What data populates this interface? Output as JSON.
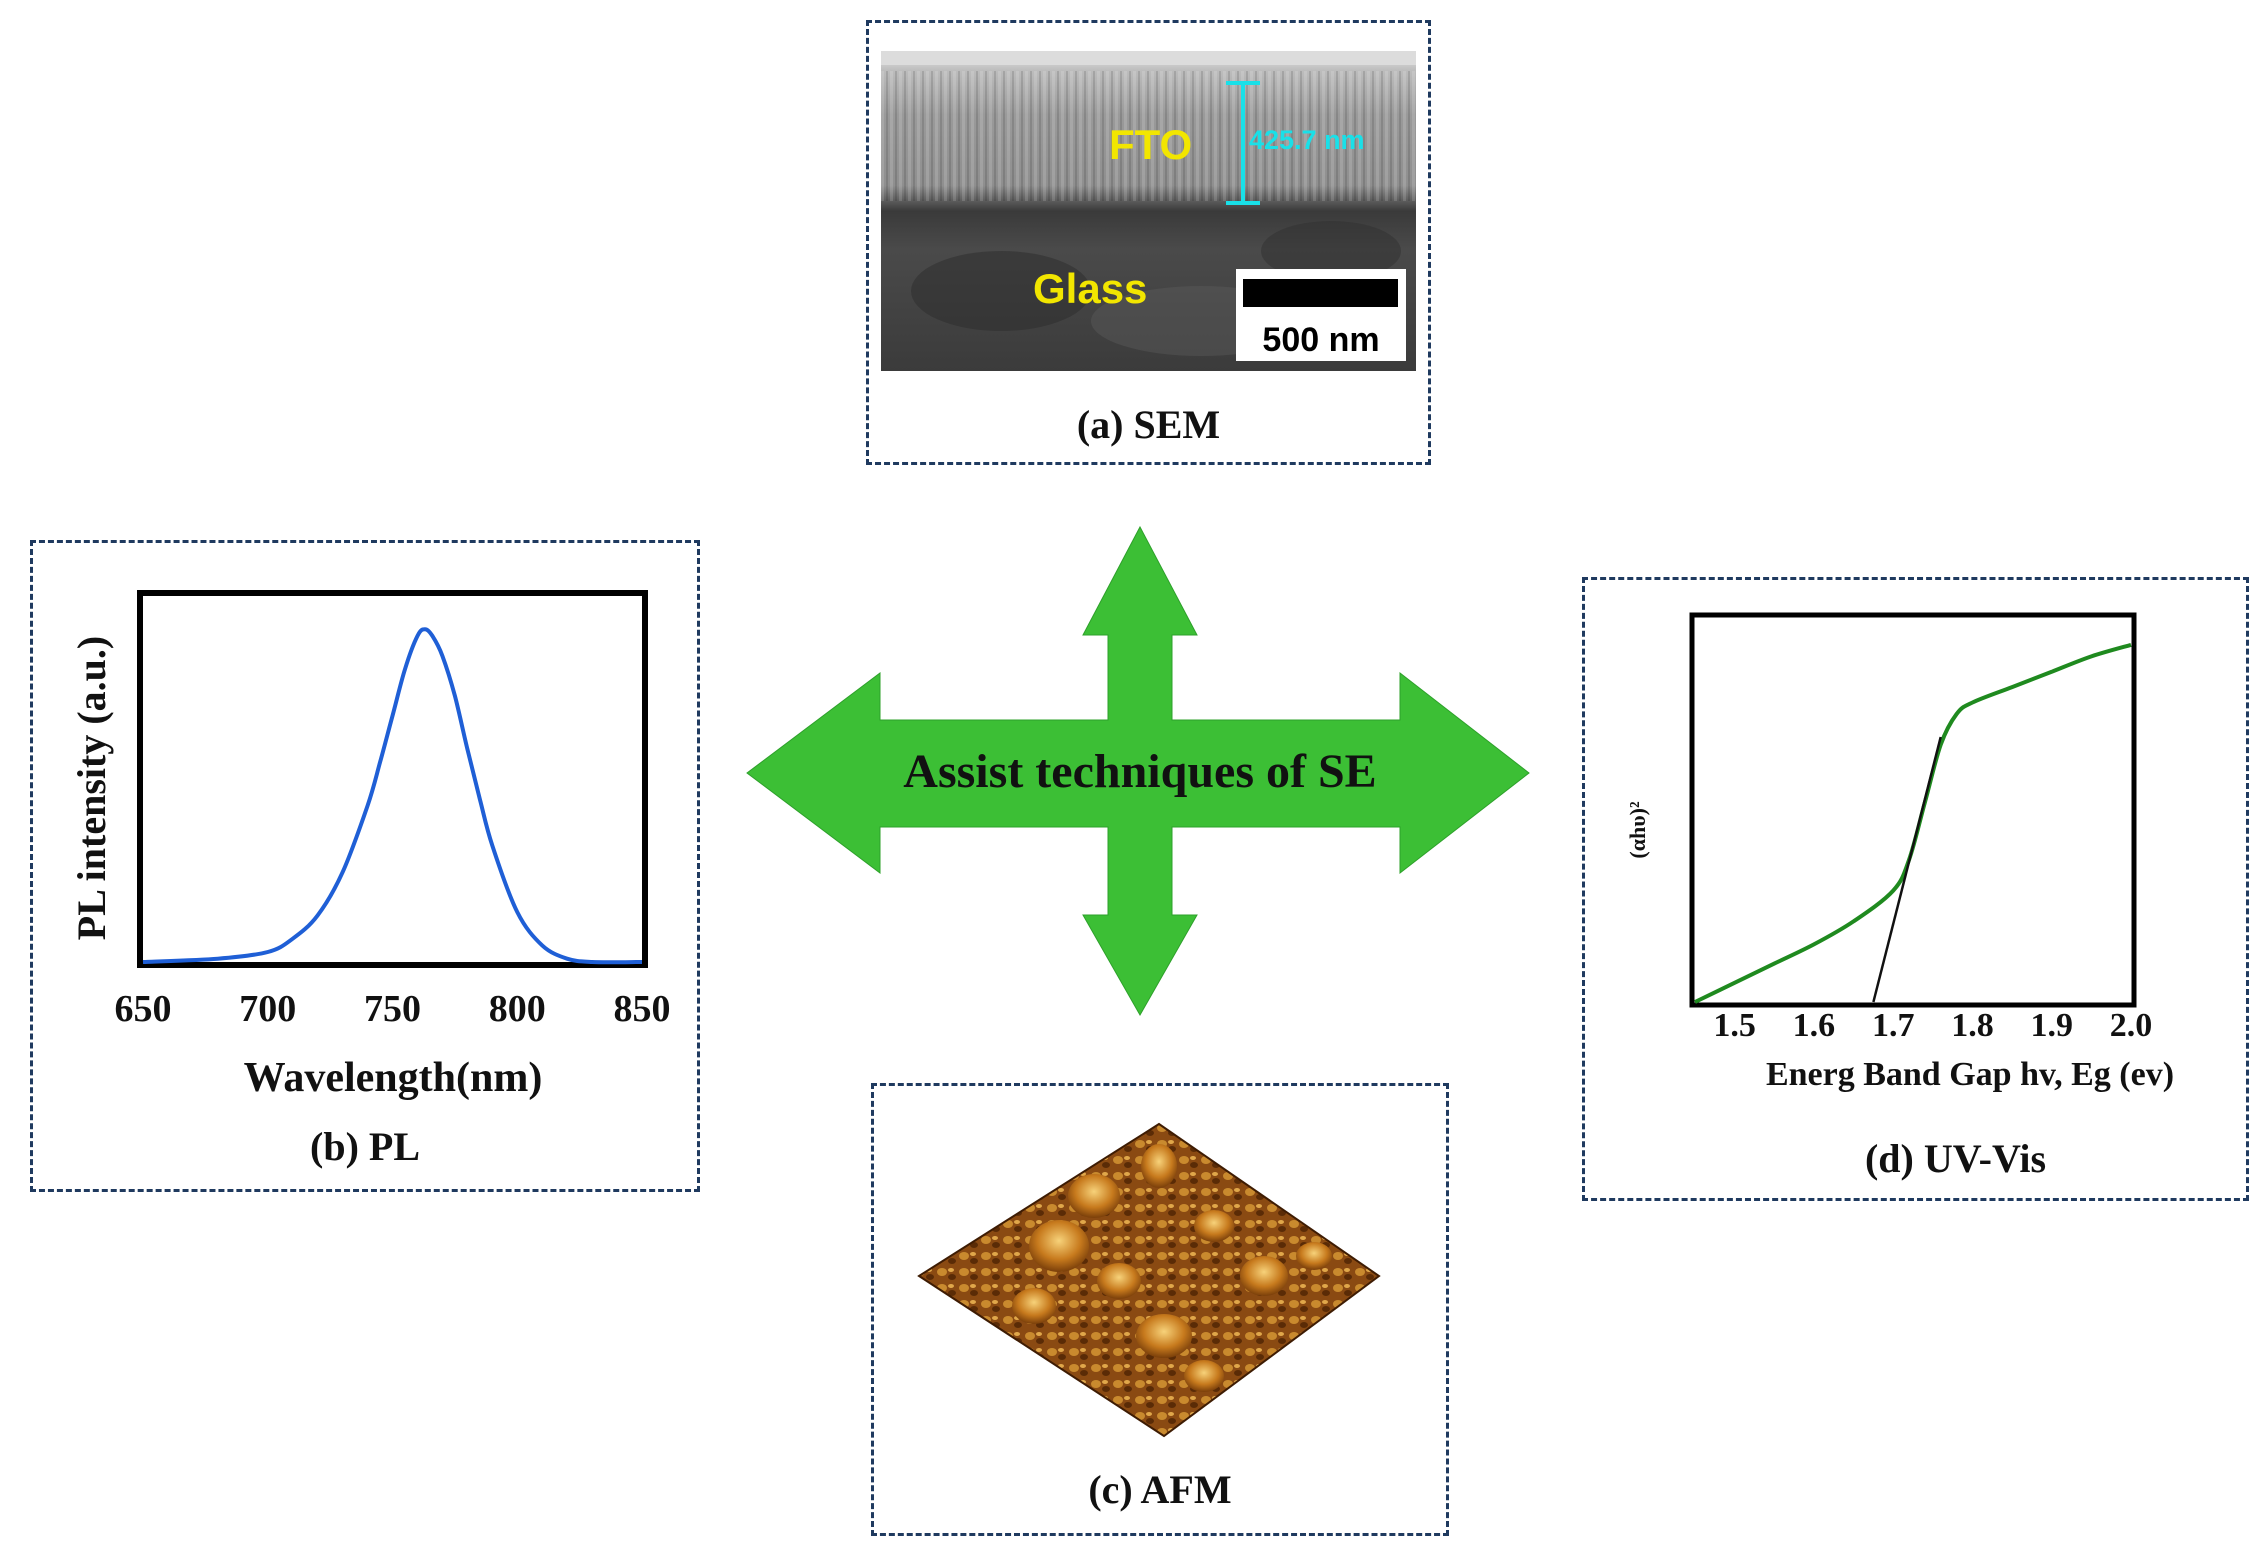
{
  "center_label": "Assist techniques of SE",
  "colors": {
    "arrow": "#3cbf35",
    "panel_border": "#1f3a5f",
    "pl_curve": "#1f5fd6",
    "uv_curve": "#1f8a1f",
    "fit_line": "#111111"
  },
  "sem": {
    "caption": "(a) SEM",
    "layer_top": "FTO",
    "layer_bottom": "Glass",
    "thickness_label": "425.7 nm",
    "scale_bar_label": "500 nm"
  },
  "pl": {
    "caption": "(b) PL",
    "xlabel": "Wavelength(nm)",
    "ylabel": "PL intensity (a.u.)",
    "xticks": [
      "650",
      "700",
      "750",
      "800",
      "850"
    ]
  },
  "afm": {
    "caption": "(c) AFM"
  },
  "uv": {
    "caption": "(d) UV-Vis",
    "xlabel": "Energ Band Gap hv, Eg (ev)",
    "ylabel": "(αhυ)²",
    "xticks": [
      "1.5",
      "1.6",
      "1.7",
      "1.8",
      "1.9",
      "2.0"
    ]
  },
  "chart_data": [
    {
      "type": "line",
      "title": "(b) PL",
      "xlabel": "Wavelength(nm)",
      "ylabel": "PL intensity (a.u.)",
      "xlim": [
        650,
        850
      ],
      "ylim": [
        0,
        1.1
      ],
      "series": [
        {
          "x": [
            650,
            680,
            700,
            710,
            720,
            730,
            740,
            745,
            750,
            755,
            760,
            763,
            766,
            770,
            775,
            780,
            785,
            790,
            800,
            810,
            820,
            830,
            850
          ],
          "values": [
            0.0,
            0.01,
            0.03,
            0.07,
            0.14,
            0.27,
            0.47,
            0.6,
            0.74,
            0.88,
            0.98,
            1.0,
            0.98,
            0.92,
            0.8,
            0.64,
            0.49,
            0.35,
            0.15,
            0.05,
            0.01,
            0.0,
            0.0
          ]
        }
      ]
    },
    {
      "type": "line",
      "title": "(d) UV-Vis",
      "xlabel": "Energ Band Gap hv, Eg (ev)",
      "ylabel": "(αhυ)²",
      "xlim": [
        1.45,
        2.0
      ],
      "ylim": [
        0,
        1.0
      ],
      "series": [
        {
          "x": [
            1.45,
            1.5,
            1.55,
            1.6,
            1.65,
            1.7,
            1.72,
            1.74,
            1.76,
            1.78,
            1.8,
            1.85,
            1.9,
            1.95,
            2.0
          ],
          "values": [
            0.0,
            0.05,
            0.1,
            0.15,
            0.21,
            0.29,
            0.37,
            0.52,
            0.67,
            0.75,
            0.78,
            0.82,
            0.86,
            0.9,
            0.93
          ]
        },
        {
          "x": [
            1.675,
            1.76
          ],
          "values": [
            0.0,
            0.69
          ]
        }
      ]
    }
  ]
}
